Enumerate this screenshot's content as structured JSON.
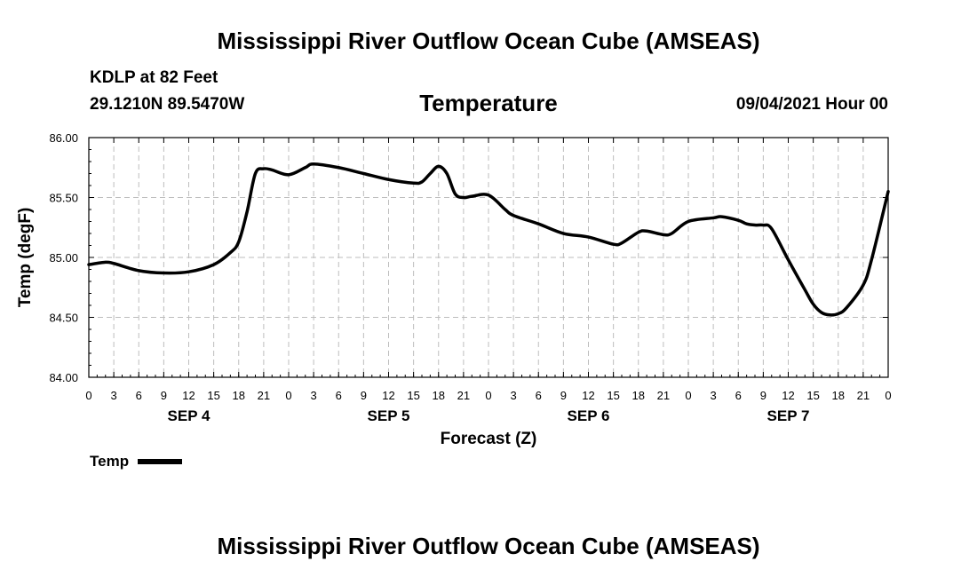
{
  "header": {
    "title": "Mississippi River Outflow Ocean Cube (AMSEAS)",
    "station": "KDLP at 82 Feet",
    "coordinates": "29.1210N  89.5470W",
    "variable": "Temperature",
    "datetime": "09/04/2021 Hour 00"
  },
  "footer": {
    "title": "Mississippi River Outflow Ocean Cube (AMSEAS)"
  },
  "legend": {
    "label": "Temp",
    "color": "#000000"
  },
  "chart_data": {
    "type": "line",
    "title": "Temperature",
    "xlabel": "Forecast (Z)",
    "ylabel": "Temp (degF)",
    "ylim": [
      84.0,
      86.0
    ],
    "xlim": [
      0,
      96
    ],
    "y_ticks": [
      "84.00",
      "84.50",
      "85.00",
      "85.50",
      "86.00"
    ],
    "x_ticks": [
      {
        "x": 0,
        "label": "0"
      },
      {
        "x": 3,
        "label": "3"
      },
      {
        "x": 6,
        "label": "6"
      },
      {
        "x": 9,
        "label": "9"
      },
      {
        "x": 12,
        "label": "12"
      },
      {
        "x": 15,
        "label": "15"
      },
      {
        "x": 18,
        "label": "18"
      },
      {
        "x": 21,
        "label": "21"
      },
      {
        "x": 24,
        "label": "0"
      },
      {
        "x": 27,
        "label": "3"
      },
      {
        "x": 30,
        "label": "6"
      },
      {
        "x": 33,
        "label": "9"
      },
      {
        "x": 36,
        "label": "12"
      },
      {
        "x": 39,
        "label": "15"
      },
      {
        "x": 42,
        "label": "18"
      },
      {
        "x": 45,
        "label": "21"
      },
      {
        "x": 48,
        "label": "0"
      },
      {
        "x": 51,
        "label": "3"
      },
      {
        "x": 54,
        "label": "6"
      },
      {
        "x": 57,
        "label": "9"
      },
      {
        "x": 60,
        "label": "12"
      },
      {
        "x": 63,
        "label": "15"
      },
      {
        "x": 66,
        "label": "18"
      },
      {
        "x": 69,
        "label": "21"
      },
      {
        "x": 72,
        "label": "0"
      },
      {
        "x": 75,
        "label": "3"
      },
      {
        "x": 78,
        "label": "6"
      },
      {
        "x": 81,
        "label": "9"
      },
      {
        "x": 84,
        "label": "12"
      },
      {
        "x": 87,
        "label": "15"
      },
      {
        "x": 90,
        "label": "18"
      },
      {
        "x": 93,
        "label": "21"
      },
      {
        "x": 96,
        "label": "0"
      }
    ],
    "day_labels": [
      {
        "x": 12,
        "label": "SEP 4"
      },
      {
        "x": 36,
        "label": "SEP 5"
      },
      {
        "x": 60,
        "label": "SEP 6"
      },
      {
        "x": 84,
        "label": "SEP 7"
      }
    ],
    "grid": true,
    "series": [
      {
        "name": "Temp",
        "x": [
          0,
          2,
          3,
          6,
          9,
          12,
          15,
          17,
          18,
          19,
          20,
          21,
          22,
          24,
          26,
          27,
          30,
          33,
          36,
          39,
          40,
          41,
          42,
          43,
          44,
          45,
          46,
          48,
          50,
          51,
          54,
          57,
          60,
          63,
          64,
          66,
          67,
          69,
          70,
          72,
          75,
          76,
          78,
          79,
          80,
          81,
          82,
          84,
          86,
          87,
          88,
          89,
          90,
          91,
          93,
          94,
          96
        ],
        "values": [
          84.94,
          84.96,
          84.95,
          84.89,
          84.87,
          84.88,
          84.94,
          85.04,
          85.13,
          85.38,
          85.7,
          85.74,
          85.73,
          85.69,
          85.75,
          85.78,
          85.75,
          85.7,
          85.65,
          85.62,
          85.63,
          85.7,
          85.76,
          85.7,
          85.53,
          85.5,
          85.51,
          85.52,
          85.4,
          85.35,
          85.28,
          85.2,
          85.17,
          85.11,
          85.12,
          85.21,
          85.22,
          85.19,
          85.2,
          85.3,
          85.33,
          85.34,
          85.31,
          85.28,
          85.27,
          85.27,
          85.24,
          84.98,
          84.73,
          84.61,
          84.54,
          84.52,
          84.53,
          84.58,
          84.77,
          84.98,
          85.55
        ]
      }
    ]
  }
}
